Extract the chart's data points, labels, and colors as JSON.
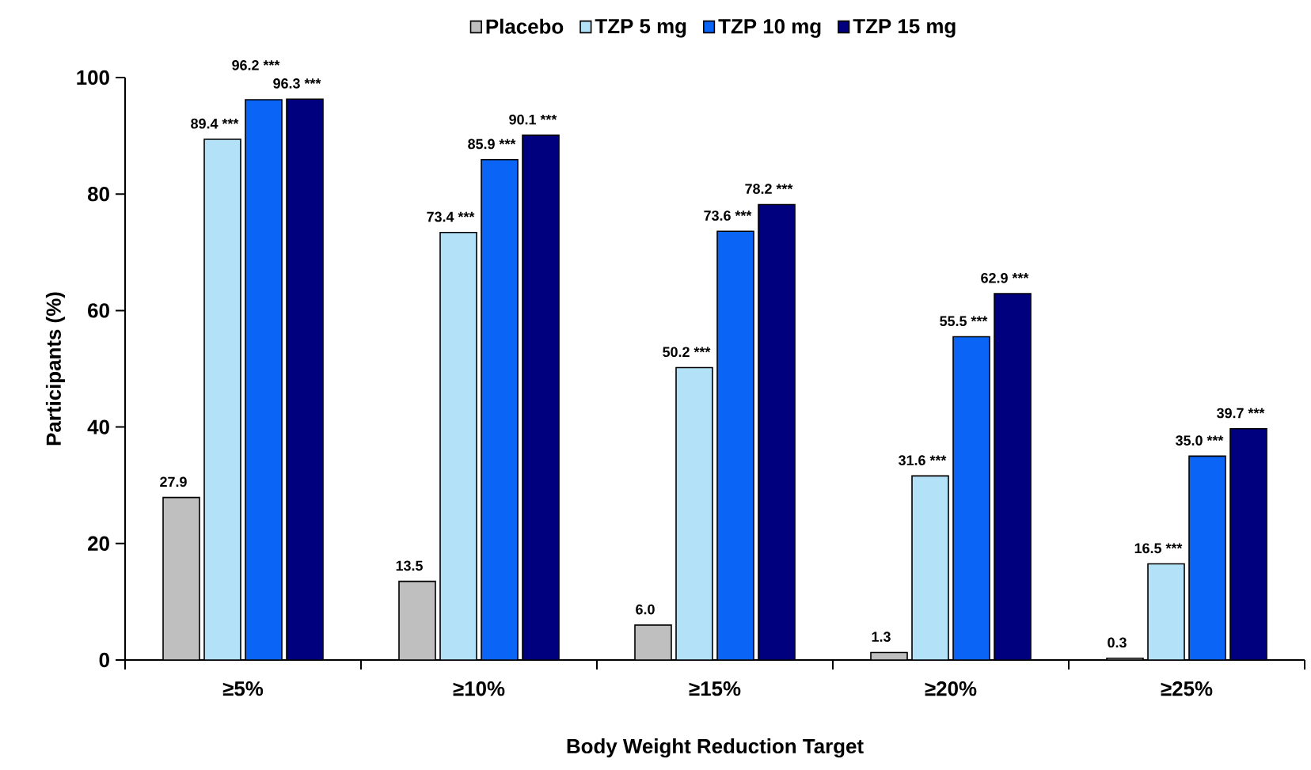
{
  "chart_data": {
    "type": "bar",
    "xlabel": "Body Weight Reduction Target",
    "ylabel": "Participants (%)",
    "categories": [
      "≥5%",
      "≥10%",
      "≥15%",
      "≥20%",
      "≥25%"
    ],
    "series": [
      {
        "name": "Placebo",
        "color": "#bfbfbf",
        "values": [
          27.9,
          13.5,
          6.0,
          1.3,
          0.3
        ],
        "value_labels": [
          "27.9",
          "13.5",
          "6.0",
          "1.3",
          "0.3"
        ]
      },
      {
        "name": "TZP 5 mg",
        "color": "#b3e1f7",
        "values": [
          89.4,
          73.4,
          50.2,
          31.6,
          16.5
        ],
        "value_labels": [
          "89.4 ***",
          "73.4 ***",
          "50.2 ***",
          "31.6 ***",
          "16.5 ***"
        ]
      },
      {
        "name": "TZP 10 mg",
        "color": "#0a64f5",
        "values": [
          96.2,
          85.9,
          73.6,
          55.5,
          35.0
        ],
        "value_labels": [
          "96.2 ***",
          "85.9 ***",
          "73.6 ***",
          "55.5 ***",
          "35.0 ***"
        ]
      },
      {
        "name": "TZP 15 mg",
        "color": "#00007f",
        "values": [
          96.3,
          90.1,
          78.2,
          62.9,
          39.7
        ],
        "value_labels": [
          "96.3 ***",
          "90.1 ***",
          "78.2 ***",
          "62.9 ***",
          "39.7 ***"
        ]
      }
    ],
    "ylim": [
      0,
      100
    ],
    "yticks": [
      0,
      20,
      40,
      60,
      80,
      100
    ],
    "legend": "top"
  }
}
